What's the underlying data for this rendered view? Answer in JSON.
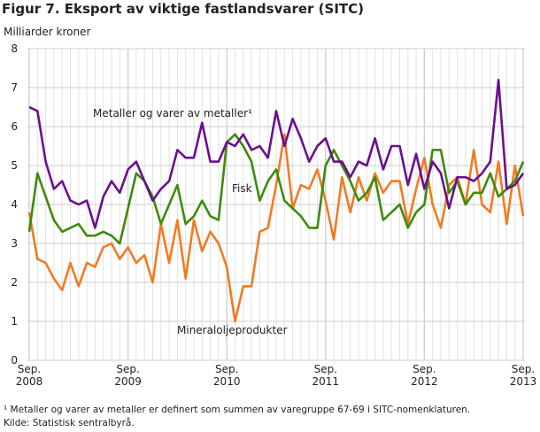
{
  "chart_data": {
    "type": "line",
    "title": "Figur 7. Eksport av viktige fastlandsvarer (SITC)",
    "ylabel": "Milliarder kroner",
    "xlabel": "",
    "ylim": [
      0,
      8
    ],
    "yticks": [
      "0",
      "1",
      "2",
      "3",
      "4",
      "5",
      "6",
      "7",
      "8"
    ],
    "x_start": "2008-09",
    "x_end": "2013-09",
    "x_frequency": "monthly",
    "xticks": [
      {
        "month": "Sep.",
        "year": "2008"
      },
      {
        "month": "Sep.",
        "year": "2009"
      },
      {
        "month": "Sep.",
        "year": "2010"
      },
      {
        "month": "Sep.",
        "year": "2011"
      },
      {
        "month": "Sep.",
        "year": "2012"
      },
      {
        "month": "Sep.",
        "year": "2013"
      }
    ],
    "grid": true,
    "series": [
      {
        "name": "Metaller og varer av metaller¹",
        "color": "#6a0f8e",
        "values": [
          6.5,
          6.4,
          5.1,
          4.4,
          4.6,
          4.1,
          4.0,
          4.1,
          3.4,
          4.2,
          4.6,
          4.3,
          4.9,
          5.1,
          4.6,
          4.1,
          4.4,
          4.6,
          5.4,
          5.2,
          5.2,
          6.1,
          5.1,
          5.1,
          5.6,
          5.5,
          5.8,
          5.4,
          5.5,
          5.2,
          6.4,
          5.5,
          6.2,
          5.7,
          5.1,
          5.5,
          5.7,
          5.1,
          5.1,
          4.7,
          5.1,
          5.0,
          5.7,
          4.9,
          5.5,
          5.5,
          4.5,
          5.3,
          4.4,
          5.1,
          4.8,
          3.9,
          4.7,
          4.7,
          4.6,
          4.8,
          5.1,
          7.2,
          4.4,
          4.5,
          4.8
        ]
      },
      {
        "name": "Fisk",
        "color": "#3e8a0a",
        "values": [
          3.3,
          4.8,
          4.2,
          3.6,
          3.3,
          3.4,
          3.5,
          3.2,
          3.2,
          3.3,
          3.2,
          3.0,
          3.9,
          4.8,
          4.6,
          4.2,
          3.5,
          4.0,
          4.5,
          3.5,
          3.7,
          4.1,
          3.7,
          3.6,
          5.6,
          5.8,
          5.5,
          5.1,
          4.1,
          4.6,
          4.9,
          4.1,
          3.9,
          3.7,
          3.4,
          3.4,
          5.0,
          5.4,
          5.0,
          4.6,
          4.1,
          4.3,
          4.7,
          3.6,
          3.8,
          4.0,
          3.4,
          3.8,
          4.0,
          5.4,
          5.4,
          4.3,
          4.6,
          4.0,
          4.3,
          4.3,
          4.8,
          4.2,
          4.4,
          4.6,
          5.1
        ]
      },
      {
        "name": "Mineraloljeprodukter",
        "color": "#ef7b22",
        "values": [
          3.8,
          2.6,
          2.5,
          2.1,
          1.8,
          2.5,
          1.9,
          2.5,
          2.4,
          2.9,
          3.0,
          2.6,
          2.9,
          2.5,
          2.7,
          2.0,
          3.5,
          2.5,
          3.6,
          2.1,
          3.6,
          2.8,
          3.3,
          3.0,
          2.4,
          1.0,
          1.9,
          1.9,
          3.3,
          3.4,
          4.5,
          5.8,
          3.9,
          4.5,
          4.4,
          4.9,
          4.1,
          3.1,
          4.7,
          3.8,
          4.7,
          4.1,
          4.8,
          4.3,
          4.6,
          4.6,
          3.5,
          4.4,
          5.2,
          4.0,
          3.4,
          4.5,
          4.7,
          4.0,
          5.4,
          4.0,
          3.8,
          5.1,
          3.5,
          5.0,
          3.7
        ]
      }
    ]
  },
  "footnotes": [
    "¹ Metaller og varer av metaller er definert som summen av varegruppe 67-69 i SITC-nomenklaturen.",
    "Kilde: Statistisk sentralbyrå."
  ]
}
